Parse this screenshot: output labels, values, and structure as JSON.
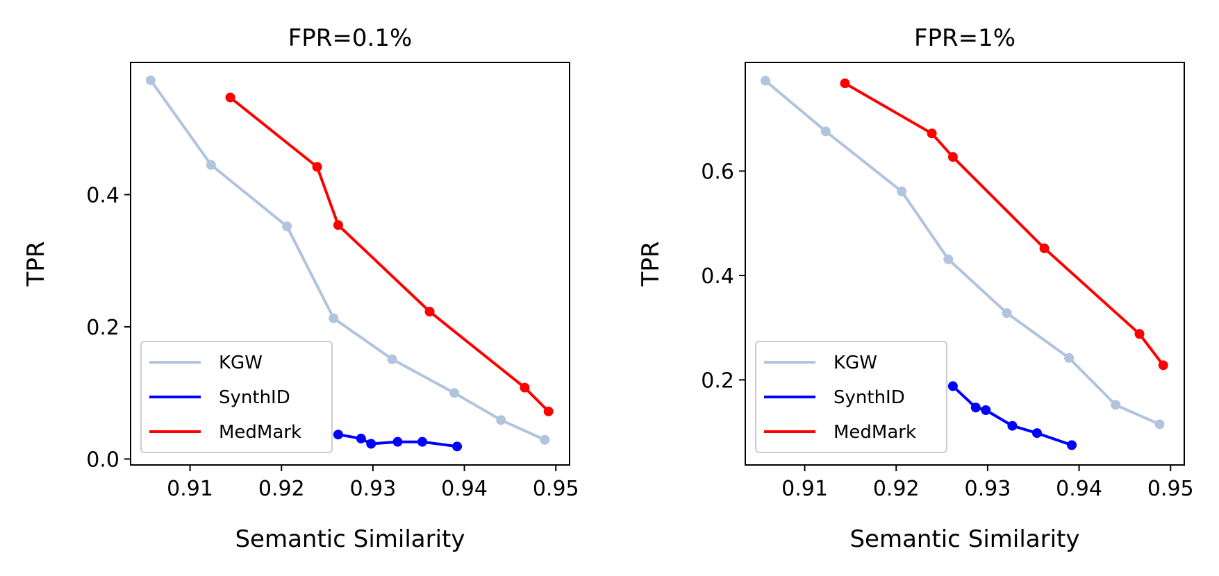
{
  "chart_data": [
    {
      "type": "line",
      "title": "FPR=0.1%",
      "xlabel": "Semantic Similarity",
      "ylabel": "TPR",
      "xlim": [
        0.9035,
        0.9515
      ],
      "ylim": [
        -0.009,
        0.6
      ],
      "xticks": [
        0.91,
        0.92,
        0.93,
        0.94,
        0.95
      ],
      "xtick_labels": [
        "0.91",
        "0.92",
        "0.93",
        "0.94",
        "0.95"
      ],
      "yticks": [
        0.0,
        0.2,
        0.4
      ],
      "ytick_labels": [
        "0.0",
        "0.2",
        "0.4"
      ],
      "grid": false,
      "legend": "lower-left",
      "series": [
        {
          "name": "KGW",
          "color": "#b0c4de",
          "x": [
            0.9057,
            0.9123,
            0.9206,
            0.9257,
            0.9321,
            0.9389,
            0.944,
            0.9488
          ],
          "y": [
            0.573,
            0.445,
            0.352,
            0.213,
            0.151,
            0.1,
            0.059,
            0.029
          ]
        },
        {
          "name": "SynthID",
          "color": "#0000ff",
          "x": [
            0.9262,
            0.9287,
            0.9298,
            0.9327,
            0.9354,
            0.9392
          ],
          "y": [
            0.037,
            0.031,
            0.023,
            0.026,
            0.026,
            0.019
          ]
        },
        {
          "name": "MedMark",
          "color": "#ff0000",
          "x": [
            0.9144,
            0.9239,
            0.9262,
            0.9362,
            0.9466,
            0.9492
          ],
          "y": [
            0.547,
            0.442,
            0.354,
            0.223,
            0.108,
            0.072
          ]
        }
      ]
    },
    {
      "type": "line",
      "title": "FPR=1%",
      "xlabel": "Semantic Similarity",
      "ylabel": "TPR",
      "xlim": [
        0.9035,
        0.9515
      ],
      "ylim": [
        0.037,
        0.808
      ],
      "xticks": [
        0.91,
        0.92,
        0.93,
        0.94,
        0.95
      ],
      "xtick_labels": [
        "0.91",
        "0.92",
        "0.93",
        "0.94",
        "0.95"
      ],
      "yticks": [
        0.2,
        0.4,
        0.6
      ],
      "ytick_labels": [
        "0.2",
        "0.4",
        "0.6"
      ],
      "grid": false,
      "legend": "lower-left",
      "series": [
        {
          "name": "KGW",
          "color": "#b0c4de",
          "x": [
            0.9057,
            0.9123,
            0.9206,
            0.9257,
            0.9321,
            0.9389,
            0.944,
            0.9488
          ],
          "y": [
            0.773,
            0.676,
            0.561,
            0.431,
            0.328,
            0.242,
            0.152,
            0.115
          ]
        },
        {
          "name": "SynthID",
          "color": "#0000ff",
          "x": [
            0.9262,
            0.9287,
            0.9298,
            0.9327,
            0.9354,
            0.9392
          ],
          "y": [
            0.188,
            0.147,
            0.142,
            0.112,
            0.098,
            0.075
          ]
        },
        {
          "name": "MedMark",
          "color": "#ff0000",
          "x": [
            0.9144,
            0.9239,
            0.9262,
            0.9362,
            0.9466,
            0.9492
          ],
          "y": [
            0.768,
            0.672,
            0.627,
            0.452,
            0.288,
            0.228
          ]
        }
      ]
    }
  ]
}
